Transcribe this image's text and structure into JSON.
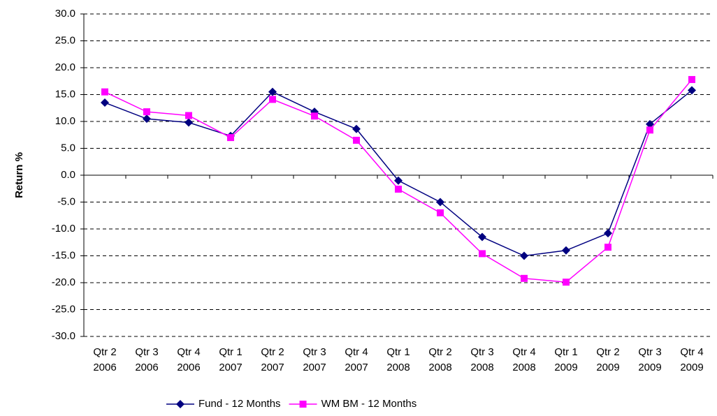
{
  "chart_data": {
    "type": "line",
    "y_label": "Return %",
    "categories": [
      "Qtr 2 2006",
      "Qtr 3 2006",
      "Qtr 4 2006",
      "Qtr 1 2007",
      "Qtr 2 2007",
      "Qtr 3 2007",
      "Qtr 4 2007",
      "Qtr 1 2008",
      "Qtr 2 2008",
      "Qtr 3 2008",
      "Qtr 4 2008",
      "Qtr 1 2009",
      "Qtr 2 2009",
      "Qtr 3 2009",
      "Qtr 4 2009"
    ],
    "series": [
      {
        "name": "Fund - 12 Months",
        "color": "#000080",
        "marker": "diamond",
        "values": [
          13.5,
          10.5,
          9.8,
          7.3,
          15.5,
          11.8,
          8.6,
          -1.0,
          -5.0,
          -11.5,
          -15.0,
          -14.0,
          -10.8,
          9.5,
          15.8
        ]
      },
      {
        "name": "WM BM - 12 Months",
        "color": "#ff00ff",
        "marker": "square",
        "values": [
          15.5,
          11.8,
          11.1,
          7.0,
          14.1,
          11.0,
          6.5,
          -2.6,
          -7.0,
          -14.6,
          -19.2,
          -19.9,
          -13.4,
          8.4,
          17.8
        ]
      }
    ],
    "ylim": [
      -30,
      30
    ],
    "yticks": [
      {
        "value": -30,
        "label": "-30.0"
      },
      {
        "value": -25,
        "label": "-25.0"
      },
      {
        "value": -20,
        "label": "-20.0"
      },
      {
        "value": -15,
        "label": "-15.0"
      },
      {
        "value": -10,
        "label": "-10.0"
      },
      {
        "value": -5,
        "label": "-5.0"
      },
      {
        "value": 0,
        "label": "0.0"
      },
      {
        "value": 5,
        "label": "5.0"
      },
      {
        "value": 10,
        "label": "10.0"
      },
      {
        "value": 15,
        "label": "15.0"
      },
      {
        "value": 20,
        "label": "20.0"
      },
      {
        "value": 25,
        "label": "25.0"
      },
      {
        "value": 30,
        "label": "30.0"
      }
    ],
    "grid": true,
    "legend": "bottom"
  }
}
